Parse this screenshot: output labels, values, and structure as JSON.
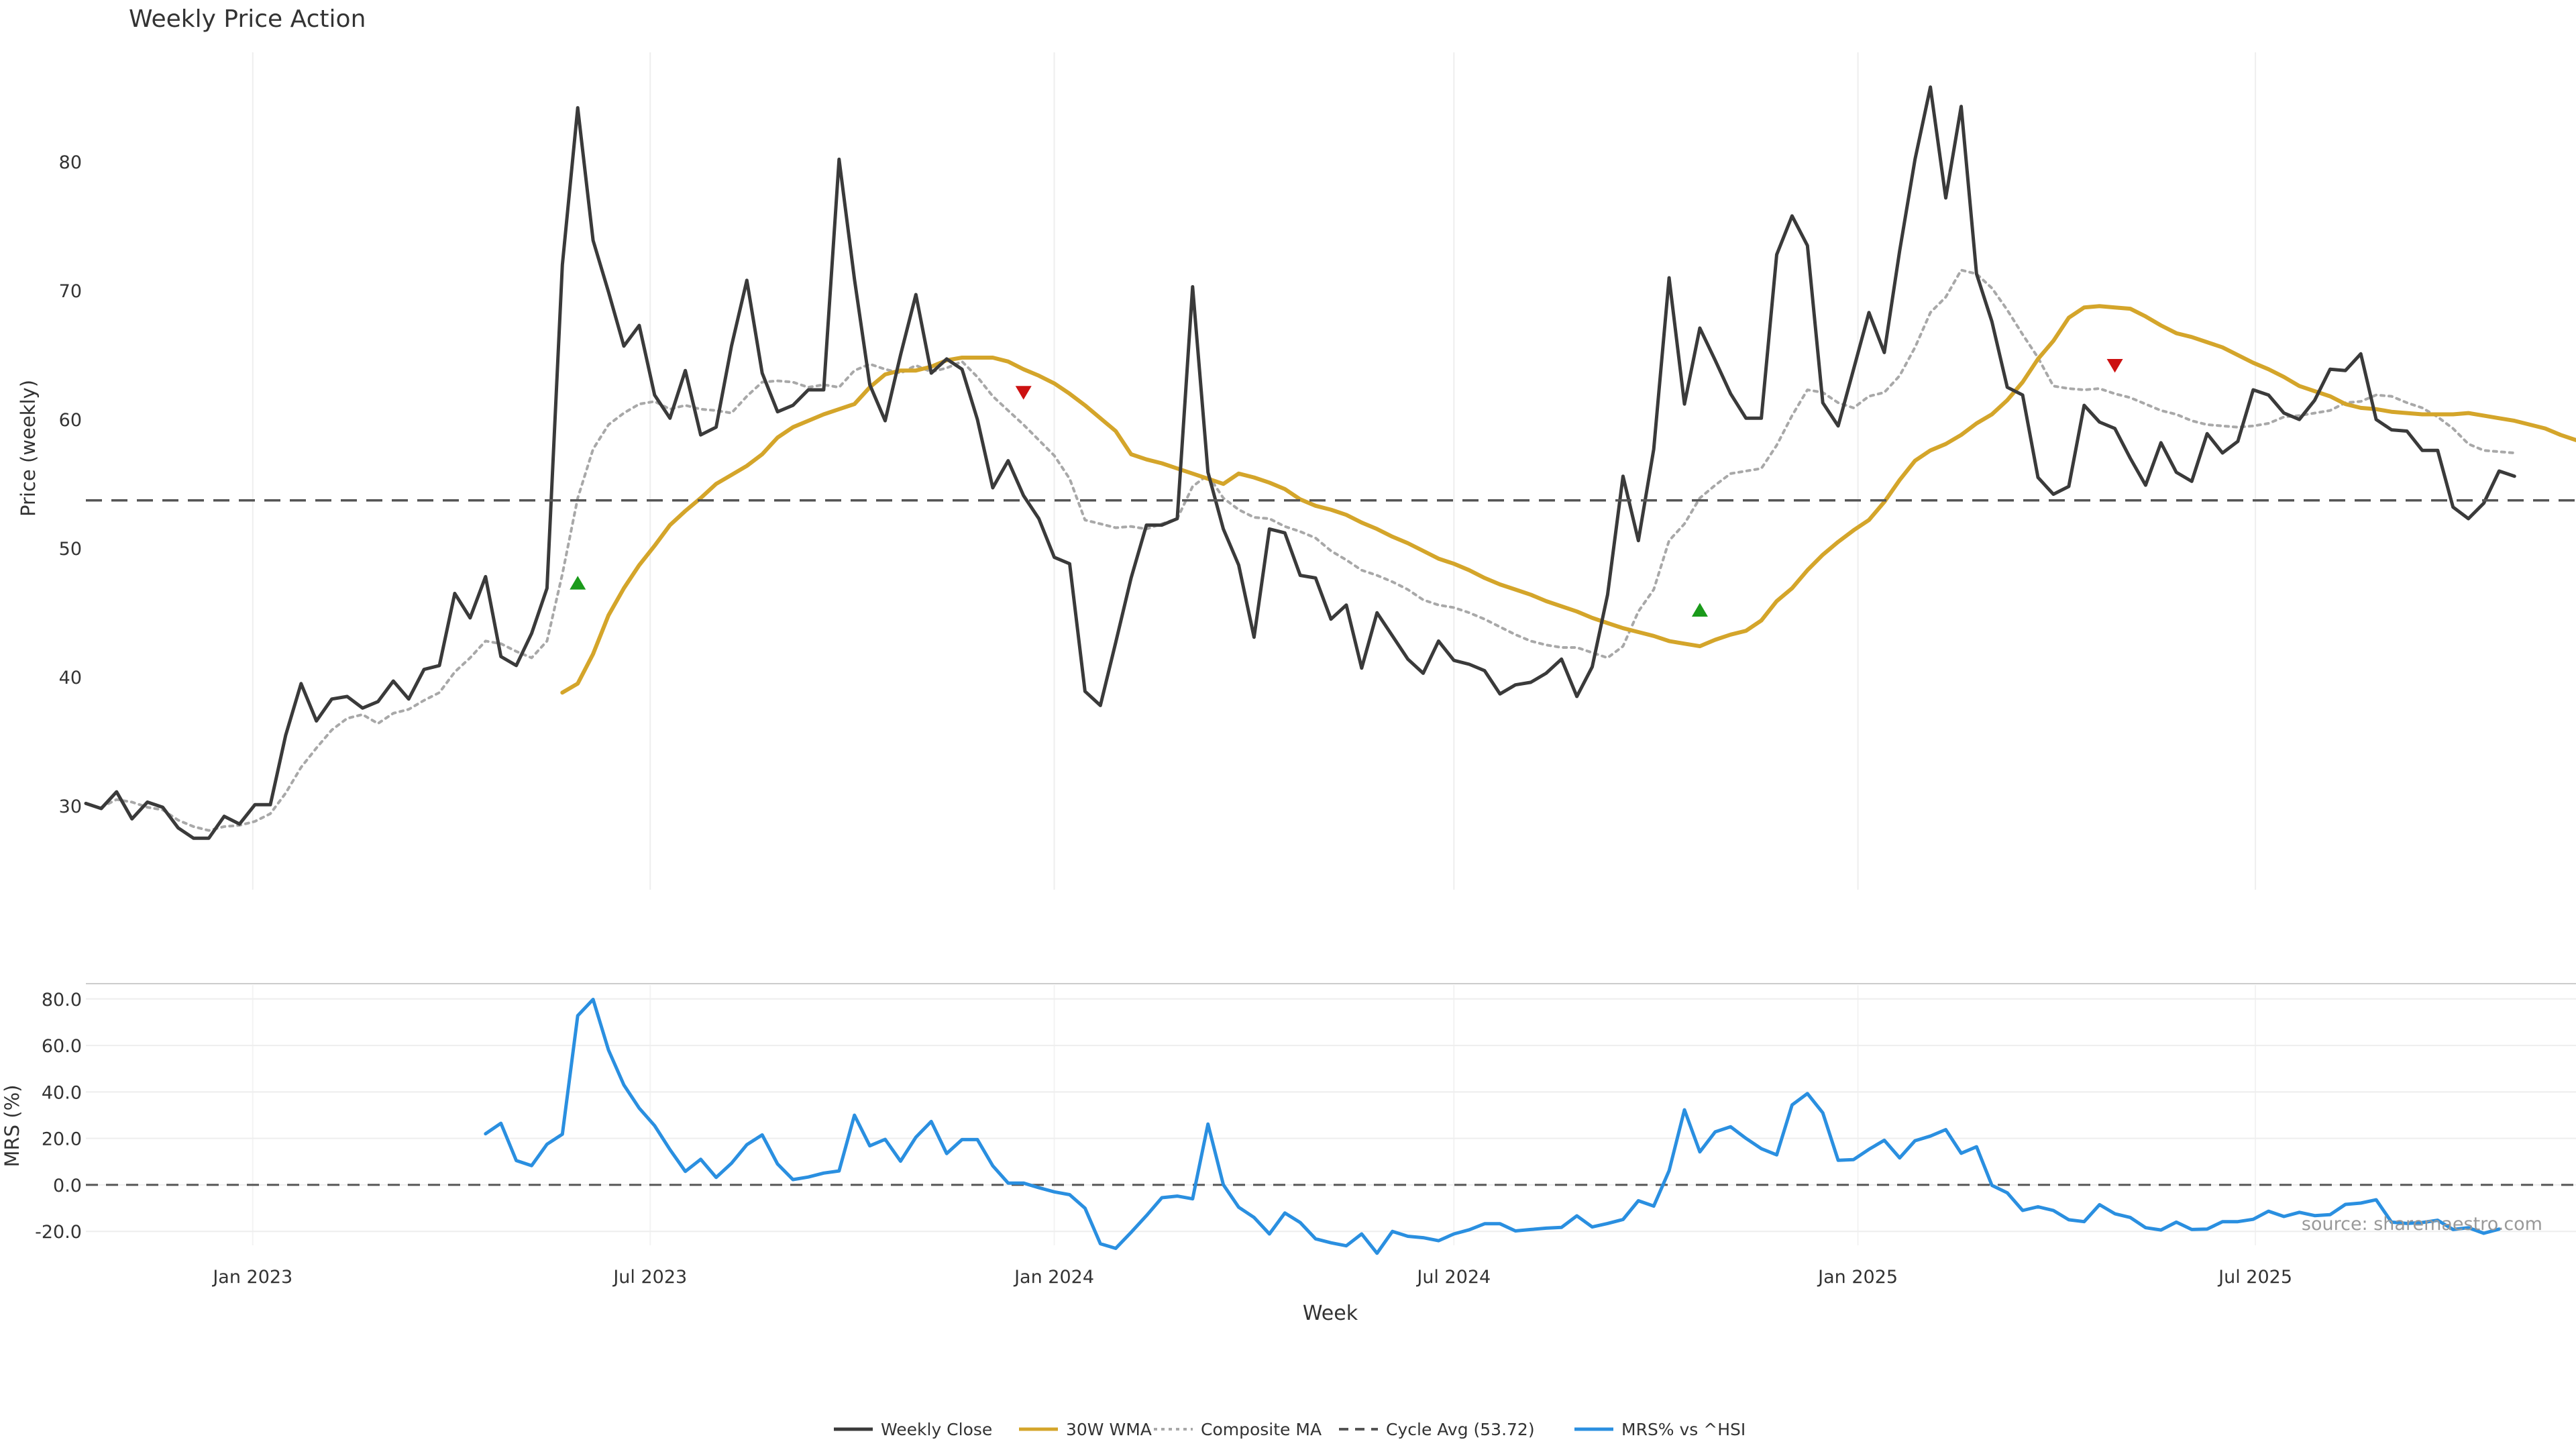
{
  "colors": {
    "close": "#3a3a3a",
    "wma": "#d4a52a",
    "composite": "#a8a8a8",
    "cycle": "#555555",
    "mrs": "#2a8fe0",
    "buy": "#1a9a1a",
    "sell": "#cc1111",
    "grid": "#eeeeee",
    "watermark": "#999999"
  },
  "footer": {
    "watermark": "source: sharemaestro.com"
  },
  "chart_data": [
    {
      "type": "line",
      "title": "Weekly Price Action",
      "ylabel": "Price (weekly)",
      "xlabel": "",
      "x_range": [
        "2022-10-17",
        "2025-11-24"
      ],
      "ylim": [
        23.5,
        88.5
      ],
      "yticks": [
        30,
        40,
        50,
        60,
        70,
        80
      ],
      "x_grid": [
        "2023-01-01",
        "2023-07-01",
        "2024-01-01",
        "2024-07-01",
        "2025-01-01",
        "2025-07-01"
      ],
      "cycle_avg": 53.72,
      "series": [
        {
          "name": "Weekly Close",
          "x_start": "2022-10-17",
          "step_days": 7,
          "values": [
            30.2,
            29.8,
            31.1,
            29.0,
            30.3,
            29.9,
            28.3,
            27.5,
            27.5,
            29.2,
            28.6,
            30.1,
            30.1,
            35.5,
            39.5,
            36.6,
            38.3,
            38.5,
            37.6,
            38.1,
            39.7,
            38.3,
            40.6,
            40.9,
            46.5,
            44.6,
            47.8,
            41.6,
            40.9,
            43.4,
            46.9,
            72.0,
            84.2,
            73.9,
            69.9,
            65.7,
            67.3,
            61.9,
            60.1,
            63.8,
            58.8,
            59.4,
            65.7,
            70.8,
            63.6,
            60.6,
            61.1,
            62.3,
            62.3,
            80.2,
            70.9,
            62.7,
            59.9,
            65.0,
            69.7,
            63.6,
            64.7,
            63.9,
            60.0,
            54.7,
            56.8,
            54.1,
            52.3,
            49.3,
            48.8,
            38.9,
            37.8,
            42.7,
            47.7,
            51.8,
            51.8,
            52.3,
            70.3,
            55.9,
            51.5,
            48.7,
            43.1,
            51.5,
            51.2,
            47.9,
            47.7,
            44.5,
            45.6,
            40.7,
            45.0,
            43.2,
            41.4,
            40.3,
            42.8,
            41.3,
            41.0,
            40.5,
            38.7,
            39.4,
            39.6,
            40.3,
            41.4,
            38.5,
            40.8,
            46.4,
            55.6,
            50.6,
            57.7,
            71.0,
            61.2,
            67.1,
            64.6,
            62.0,
            60.1,
            60.1,
            72.8,
            75.8,
            73.5,
            61.3,
            59.5,
            63.9,
            68.3,
            65.2,
            73.1,
            80.2,
            85.8,
            77.2,
            84.3,
            71.3,
            67.6,
            62.5,
            61.9,
            55.5,
            54.2,
            54.8,
            61.1,
            59.8,
            59.3,
            57.0,
            54.9,
            58.2,
            55.9,
            55.2,
            58.9,
            57.4,
            58.3,
            62.3,
            61.9,
            60.5,
            60.0,
            61.5,
            63.9,
            63.8,
            65.1,
            60.0,
            59.2,
            59.1,
            57.6,
            57.6,
            53.2,
            52.3,
            53.5,
            56.0,
            55.6
          ]
        },
        {
          "name": "30W WMA",
          "x_start": "2023-05-22",
          "step_days": 7,
          "values": [
            38.8,
            39.5,
            41.8,
            44.8,
            46.9,
            48.7,
            50.2,
            51.8,
            52.9,
            53.9,
            55.0,
            55.7,
            56.4,
            57.3,
            58.6,
            59.4,
            59.9,
            60.4,
            60.8,
            61.2,
            62.5,
            63.5,
            63.8,
            63.8,
            64.1,
            64.6,
            64.8,
            64.8,
            64.8,
            64.5,
            63.9,
            63.4,
            62.8,
            62.0,
            61.1,
            60.1,
            59.1,
            57.3,
            56.9,
            56.6,
            56.2,
            55.8,
            55.4,
            55.0,
            55.8,
            55.5,
            55.1,
            54.6,
            53.8,
            53.3,
            53.0,
            52.6,
            52.0,
            51.5,
            50.9,
            50.4,
            49.8,
            49.2,
            48.8,
            48.3,
            47.7,
            47.2,
            46.8,
            46.4,
            45.9,
            45.5,
            45.1,
            44.6,
            44.2,
            43.8,
            43.5,
            43.2,
            42.8,
            42.6,
            42.4,
            42.9,
            43.3,
            43.6,
            44.4,
            45.9,
            46.9,
            48.3,
            49.5,
            50.5,
            51.4,
            52.2,
            53.6,
            55.3,
            56.8,
            57.6,
            58.1,
            58.8,
            59.7,
            60.4,
            61.5,
            62.9,
            64.7,
            66.1,
            67.9,
            68.7,
            68.8,
            68.7,
            68.6,
            68.0,
            67.3,
            66.7,
            66.4,
            66.0,
            65.6,
            65.0,
            64.4,
            63.9,
            63.3,
            62.6,
            62.2,
            61.8,
            61.2,
            60.9,
            60.8,
            60.6,
            60.5,
            60.4,
            60.4,
            60.4,
            60.5,
            60.3,
            60.1,
            59.9,
            59.6,
            59.3,
            58.8,
            58.4
          ]
        },
        {
          "name": "Composite MA",
          "x_start": "2022-10-24",
          "step_days": 7,
          "values": [
            29.9,
            30.5,
            30.3,
            29.9,
            29.7,
            28.9,
            28.4,
            28.1,
            28.4,
            28.5,
            28.8,
            29.4,
            31.0,
            33.0,
            34.5,
            35.9,
            36.8,
            37.1,
            36.4,
            37.2,
            37.5,
            38.2,
            38.8,
            40.4,
            41.5,
            42.8,
            42.6,
            42.0,
            41.5,
            42.8,
            48.0,
            53.9,
            57.7,
            59.6,
            60.5,
            61.2,
            61.4,
            60.8,
            61.1,
            60.8,
            60.7,
            60.5,
            61.8,
            62.9,
            63.0,
            62.9,
            62.5,
            62.7,
            62.5,
            63.8,
            64.3,
            63.9,
            63.6,
            64.2,
            63.7,
            64.0,
            64.5,
            63.3,
            61.8,
            60.7,
            59.6,
            58.4,
            57.2,
            55.4,
            52.2,
            51.9,
            51.6,
            51.7,
            51.5,
            51.9,
            52.3,
            54.8,
            55.7,
            53.9,
            53.0,
            52.4,
            52.3,
            51.7,
            51.3,
            50.8,
            49.8,
            49.1,
            48.3,
            47.9,
            47.4,
            46.8,
            46.0,
            45.6,
            45.4,
            45.0,
            44.5,
            43.9,
            43.3,
            42.8,
            42.5,
            42.3,
            42.3,
            41.9,
            41.5,
            42.4,
            45.1,
            46.8,
            50.6,
            51.9,
            53.9,
            54.9,
            55.8,
            56.0,
            56.2,
            58.0,
            60.3,
            62.3,
            62.1,
            61.3,
            60.9,
            61.8,
            62.1,
            63.4,
            65.6,
            68.3,
            69.5,
            71.6,
            71.3,
            70.2,
            68.5,
            66.6,
            64.8,
            62.6,
            62.4,
            62.3,
            62.4,
            62.0,
            61.7,
            61.2,
            60.7,
            60.4,
            59.9,
            59.6,
            59.5,
            59.4,
            59.5,
            59.7,
            60.2,
            60.3,
            60.5,
            60.7,
            61.3,
            61.4,
            61.9,
            61.8,
            61.3,
            60.9,
            60.2,
            59.3,
            58.1,
            57.6,
            57.5,
            57.4
          ]
        }
      ],
      "signals": [
        {
          "type": "buy",
          "x": "2023-05-29",
          "y": 47.3
        },
        {
          "type": "sell",
          "x": "2023-12-18",
          "y": 62.1
        },
        {
          "type": "buy",
          "x": "2024-10-21",
          "y": 45.2
        },
        {
          "type": "sell",
          "x": "2025-04-28",
          "y": 64.2
        }
      ]
    },
    {
      "type": "line",
      "title": "",
      "ylabel": "MRS (%)",
      "xlabel": "Week",
      "x_range": [
        "2022-10-17",
        "2025-11-24"
      ],
      "ylim": [
        -26,
        86
      ],
      "yticks": [
        -20,
        0,
        20,
        40,
        60,
        80
      ],
      "ytick_labels": [
        "-20.0",
        "0.0",
        "20.0",
        "40.0",
        "60.0",
        "80.0"
      ],
      "xticks": [
        {
          "x": "2023-01-01",
          "label": "Jan 2023"
        },
        {
          "x": "2023-07-01",
          "label": "Jul 2023"
        },
        {
          "x": "2024-01-01",
          "label": "Jan 2024"
        },
        {
          "x": "2024-07-01",
          "label": "Jul 2024"
        },
        {
          "x": "2025-01-01",
          "label": "Jan 2025"
        },
        {
          "x": "2025-07-01",
          "label": "Jul 2025"
        }
      ],
      "series": [
        {
          "name": "MRS% vs ^HSI",
          "x_start": "2023-04-17",
          "step_days": 7,
          "values": [
            22.0,
            26.5,
            10.5,
            8.3,
            17.5,
            21.8,
            72.8,
            79.8,
            58.0,
            43.0,
            33.0,
            25.5,
            15.2,
            5.8,
            11.0,
            3.2,
            9.3,
            17.3,
            21.5,
            9.0,
            2.3,
            3.4,
            5.1,
            6.0,
            30.0,
            16.8,
            19.6,
            10.2,
            20.5,
            27.3,
            13.5,
            19.5,
            19.5,
            8.2,
            0.8,
            0.8,
            -1.2,
            -3.0,
            -4.2,
            -10.0,
            -25.3,
            -27.3,
            -20.4,
            -13.2,
            -5.5,
            -4.8,
            -6.0,
            26.2,
            0.1,
            -9.6,
            -14.0,
            -21.1,
            -12.1,
            -16.2,
            -23.2,
            -24.9,
            -26.2,
            -21.1,
            -29.4,
            -20.0,
            -22.1,
            -22.7,
            -24.0,
            -21.1,
            -19.3,
            -16.7,
            -16.7,
            -19.8,
            -19.2,
            -18.6,
            -18.3,
            -13.3,
            -18.1,
            -16.6,
            -14.9,
            -6.8,
            -9.1,
            6.1,
            32.3,
            14.2,
            22.8,
            25.0,
            20.0,
            15.6,
            12.9,
            34.4,
            39.3,
            31.0,
            10.6,
            10.9,
            15.3,
            19.2,
            11.6,
            19.0,
            21.0,
            23.8,
            13.6,
            16.4,
            -0.2,
            -3.4,
            -11.0,
            -9.4,
            -11.0,
            -15.0,
            -15.8,
            -8.5,
            -12.4,
            -14.0,
            -18.4,
            -19.4,
            -16.0,
            -19.2,
            -19.0,
            -15.8,
            -15.8,
            -14.8,
            -11.3,
            -13.6,
            -11.8,
            -13.2,
            -12.8,
            -8.4,
            -7.8,
            -6.4,
            -16.0,
            -16.6,
            -16.2,
            -15.2,
            -19.2,
            -18.4,
            -20.8,
            -19.0
          ]
        }
      ]
    }
  ],
  "legend": {
    "placement": "bottom-center",
    "items": [
      {
        "label": "Weekly Close",
        "style": "solid",
        "color_key": "close"
      },
      {
        "label": "30W WMA",
        "style": "solid",
        "color_key": "wma"
      },
      {
        "label": "Composite MA",
        "style": "dotted",
        "color_key": "composite"
      },
      {
        "label": "Cycle Avg (53.72)",
        "style": "dashed",
        "color_key": "cycle"
      },
      {
        "label": "MRS% vs ^HSI",
        "style": "solid",
        "color_key": "mrs"
      }
    ]
  }
}
